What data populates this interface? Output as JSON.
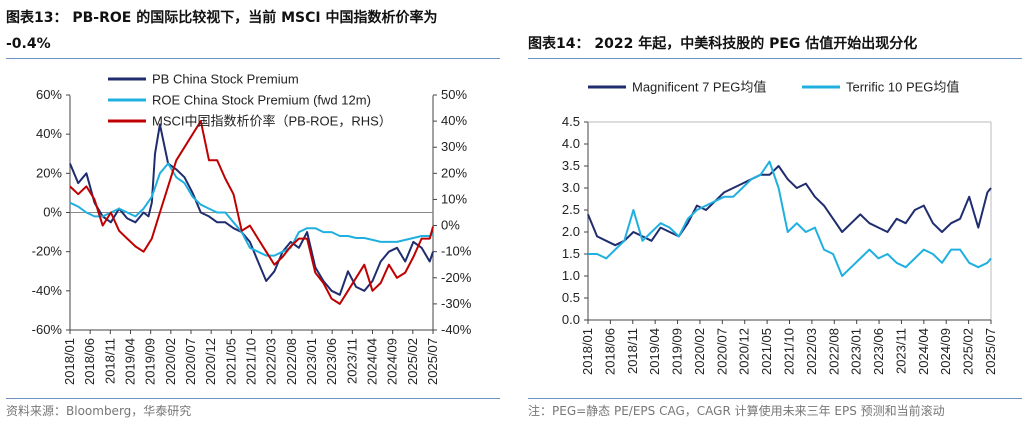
{
  "left": {
    "title_line1": "图表13： PB-ROE 的国际比较视下，当前 MSCI 中国指数析价率为",
    "title_line2": "-0.4%",
    "source": "资料来源：Bloomberg，华泰研究",
    "chart_data": {
      "type": "line",
      "x_tick_labels": [
        "2018/01",
        "2018/06",
        "2018/11",
        "2019/04",
        "2019/09",
        "2020/02",
        "2020/07",
        "2020/12",
        "2021/05",
        "2021/10",
        "2022/03",
        "2022/08",
        "2023/01",
        "2023/06",
        "2023/11",
        "2024/04",
        "2024/09",
        "2025/02",
        "2025/07"
      ],
      "y_left": {
        "ticks": [
          "60%",
          "40%",
          "20%",
          "0%",
          "-20%",
          "-40%",
          "-60%"
        ],
        "range": [
          -60,
          60
        ],
        "unit": "%"
      },
      "y_right": {
        "ticks": [
          "50%",
          "40%",
          "30%",
          "20%",
          "10%",
          "0%",
          "-10%",
          "-20%",
          "-30%",
          "-40%"
        ],
        "range": [
          -40,
          50
        ],
        "unit": "%"
      },
      "legend_position": "top-left",
      "series": [
        {
          "name": "PB China Stock Premium",
          "axis": "left",
          "color": "#1f2d6e",
          "x": [
            0,
            5,
            10,
            15,
            20,
            25,
            30,
            35,
            40,
            45,
            48,
            50,
            52,
            55,
            60,
            65,
            70,
            75,
            80,
            85,
            90,
            95,
            100,
            105,
            110,
            115,
            120,
            125,
            130,
            135,
            140,
            145,
            150,
            155,
            160,
            165,
            170,
            175,
            180,
            185,
            190,
            195,
            200,
            205,
            210,
            215,
            220,
            222
          ],
          "values": [
            25,
            15,
            20,
            5,
            -2,
            -5,
            2,
            -3,
            -5,
            0,
            -2,
            5,
            30,
            45,
            25,
            22,
            18,
            10,
            0,
            -2,
            -5,
            -5,
            -8,
            -10,
            -15,
            -25,
            -35,
            -30,
            -20,
            -15,
            -18,
            -10,
            -28,
            -35,
            -40,
            -42,
            -30,
            -38,
            -40,
            -35,
            -25,
            -20,
            -18,
            -25,
            -15,
            -18,
            -25,
            -20
          ]
        },
        {
          "name": "ROE China Stock Premium (fwd 12m)",
          "axis": "left",
          "color": "#1fb0e0",
          "x": [
            0,
            5,
            10,
            15,
            20,
            25,
            30,
            35,
            40,
            45,
            50,
            55,
            60,
            65,
            70,
            75,
            80,
            85,
            90,
            95,
            100,
            105,
            110,
            115,
            120,
            125,
            130,
            135,
            140,
            145,
            150,
            155,
            160,
            165,
            170,
            175,
            180,
            185,
            190,
            195,
            200,
            205,
            210,
            215,
            220,
            222
          ],
          "values": [
            5,
            3,
            0,
            -2,
            -2,
            0,
            2,
            0,
            -2,
            2,
            8,
            20,
            25,
            18,
            15,
            8,
            4,
            2,
            0,
            0,
            -5,
            -10,
            -18,
            -20,
            -22,
            -22,
            -20,
            -18,
            -10,
            -8,
            -8,
            -10,
            -10,
            -12,
            -12,
            -13,
            -13,
            -14,
            -15,
            -15,
            -15,
            -14,
            -13,
            -12,
            -12,
            -11
          ]
        },
        {
          "name": "MSCI中国指数析价率（PB-ROE，RHS）",
          "axis": "right",
          "color": "#c00000",
          "x": [
            0,
            5,
            10,
            15,
            20,
            25,
            30,
            35,
            40,
            45,
            50,
            55,
            60,
            65,
            70,
            75,
            80,
            85,
            90,
            95,
            100,
            105,
            110,
            115,
            120,
            125,
            130,
            135,
            140,
            145,
            150,
            155,
            160,
            165,
            170,
            175,
            180,
            185,
            190,
            195,
            200,
            205,
            210,
            215,
            220,
            222
          ],
          "values": [
            15,
            12,
            15,
            10,
            0,
            5,
            -2,
            -5,
            -8,
            -10,
            -5,
            5,
            15,
            25,
            30,
            35,
            40,
            25,
            25,
            18,
            12,
            -2,
            0,
            -5,
            -10,
            -15,
            -12,
            -8,
            -5,
            -5,
            -18,
            -22,
            -28,
            -30,
            -25,
            -20,
            -15,
            -25,
            -22,
            -15,
            -20,
            -18,
            -12,
            -5,
            -5,
            -0.4
          ]
        }
      ]
    }
  },
  "right": {
    "title": "图表14： 2022 年起，中美科技股的 PEG 估值开始出现分化",
    "source": "注：PEG=静态 PE/EPS CAG，CAGR 计算使用未来三年 EPS 预测和当前滚动",
    "chart_data": {
      "type": "line",
      "x_tick_labels": [
        "2018/01",
        "2018/06",
        "2018/11",
        "2019/04",
        "2019/09",
        "2020/02",
        "2020/07",
        "2020/12",
        "2021/05",
        "2021/10",
        "2022/03",
        "2022/08",
        "2023/01",
        "2023/06",
        "2023/11",
        "2024/04",
        "2024/09",
        "2025/02",
        "2025/07"
      ],
      "y_left": {
        "ticks": [
          "4.5",
          "4.0",
          "3.5",
          "3.0",
          "2.5",
          "2.0",
          "1.5",
          "1.0",
          "0.5",
          "0.0"
        ],
        "range": [
          0,
          4.5
        ]
      },
      "legend_position": "top",
      "series": [
        {
          "name": "Magnificent 7 PEG均值",
          "color": "#1f2d6e",
          "x": [
            0,
            5,
            10,
            15,
            20,
            25,
            30,
            35,
            40,
            45,
            50,
            55,
            60,
            65,
            70,
            75,
            80,
            85,
            90,
            95,
            100,
            105,
            110,
            115,
            120,
            125,
            130,
            135,
            140,
            145,
            150,
            155,
            160,
            165,
            170,
            175,
            180,
            185,
            190,
            195,
            200,
            205,
            210,
            215,
            220,
            222
          ],
          "values": [
            2.4,
            1.9,
            1.8,
            1.7,
            1.8,
            2.0,
            1.9,
            1.8,
            2.1,
            2.0,
            1.9,
            2.2,
            2.6,
            2.5,
            2.7,
            2.9,
            3.0,
            3.1,
            3.2,
            3.3,
            3.3,
            3.5,
            3.2,
            3.0,
            3.1,
            2.8,
            2.6,
            2.3,
            2.0,
            2.2,
            2.4,
            2.2,
            2.1,
            2.0,
            2.3,
            2.2,
            2.5,
            2.6,
            2.2,
            2.0,
            2.2,
            2.3,
            2.8,
            2.1,
            2.9,
            3.0
          ]
        },
        {
          "name": "Terrific 10 PEG均值",
          "color": "#1fb0e0",
          "x": [
            0,
            5,
            10,
            15,
            20,
            25,
            30,
            35,
            40,
            45,
            50,
            55,
            60,
            65,
            70,
            75,
            80,
            85,
            90,
            95,
            100,
            105,
            110,
            115,
            120,
            125,
            130,
            135,
            140,
            145,
            150,
            155,
            160,
            165,
            170,
            175,
            180,
            185,
            190,
            195,
            200,
            205,
            210,
            215,
            220,
            222
          ],
          "values": [
            1.5,
            1.5,
            1.4,
            1.6,
            1.8,
            2.5,
            1.8,
            2.0,
            2.2,
            2.1,
            1.9,
            2.3,
            2.5,
            2.6,
            2.7,
            2.8,
            2.8,
            3.0,
            3.2,
            3.3,
            3.6,
            3.0,
            2.0,
            2.2,
            2.0,
            2.1,
            1.6,
            1.5,
            1.0,
            1.2,
            1.4,
            1.6,
            1.4,
            1.5,
            1.3,
            1.2,
            1.4,
            1.6,
            1.5,
            1.3,
            1.6,
            1.6,
            1.3,
            1.2,
            1.3,
            1.4
          ]
        }
      ]
    }
  }
}
